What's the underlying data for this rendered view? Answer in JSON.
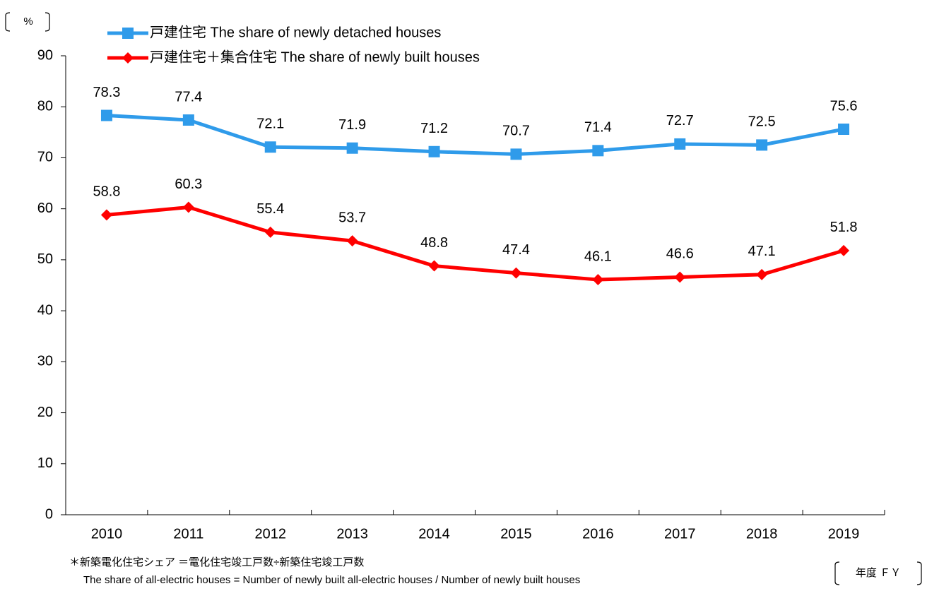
{
  "chart_data": {
    "type": "line",
    "y_unit": "%",
    "x_unit": "年度 ＦＹ",
    "categories": [
      "2010",
      "2011",
      "2012",
      "2013",
      "2014",
      "2015",
      "2016",
      "2017",
      "2018",
      "2019"
    ],
    "series": [
      {
        "name": "戸建住宅  The share of newly detached houses",
        "color": "#2f9bea",
        "marker": "square",
        "values": [
          78.3,
          77.4,
          72.1,
          71.9,
          71.2,
          70.7,
          71.4,
          72.7,
          72.5,
          75.6
        ]
      },
      {
        "name": "戸建住宅＋集合住宅  The share of newly built houses",
        "color": "#ff0000",
        "marker": "diamond",
        "values": [
          58.8,
          60.3,
          55.4,
          53.7,
          48.8,
          47.4,
          46.1,
          46.6,
          47.1,
          51.8
        ]
      }
    ],
    "ylim": [
      0,
      90
    ],
    "yticks": [
      0,
      10,
      20,
      30,
      40,
      50,
      60,
      70,
      80,
      90
    ],
    "grid": false,
    "footnotes": [
      "＊新築電化住宅シェア ＝電化住宅竣工戸数÷新築住宅竣工戸数",
      "The share of all-electric houses = Number of newly built all-electric houses / Number of newly built houses"
    ]
  }
}
